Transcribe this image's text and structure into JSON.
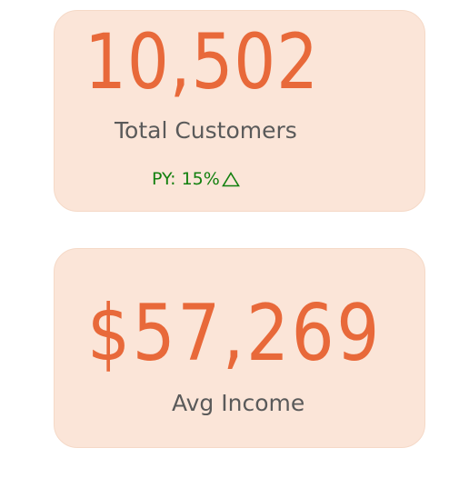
{
  "cards": {
    "total_customers": {
      "value": "10,502",
      "label": "Total Customers",
      "py_text": "PY: 15%",
      "py_icon": "triangle-up-outline-icon"
    },
    "avg_income": {
      "value": "$57,269",
      "label": "Avg Income"
    }
  },
  "colors": {
    "card_background": "#fbe5d8",
    "value_color": "#e8693a",
    "label_color": "#5a5a5a",
    "positive_color": "#13800f"
  }
}
